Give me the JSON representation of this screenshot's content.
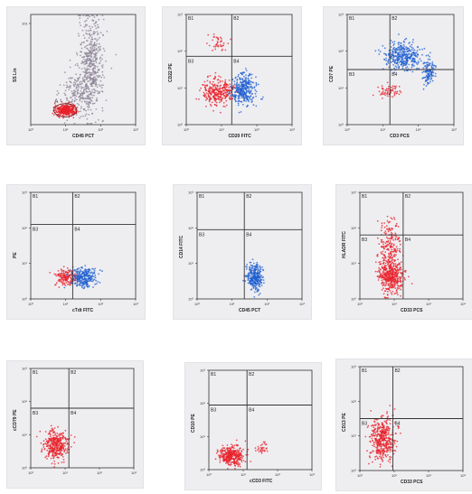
{
  "colors": {
    "red": "#e8202a",
    "blue": "#1f5fd0",
    "gray": "#8e8496",
    "panel": "#eeeef1",
    "line": "#333333"
  },
  "chart_data": [
    {
      "type": "scatter",
      "xlabel": "CD45 PCT",
      "ylabel": "SS Lin",
      "quadrants": false,
      "gate_label": "A",
      "x_ticks": [
        "10⁰",
        "10¹",
        "10²",
        "10³"
      ],
      "y_ticks": [
        "101"
      ],
      "series": [
        {
          "color": "gray",
          "clusters": [
            {
              "x": 0.58,
              "y": 0.55,
              "sx": 0.06,
              "sy": 0.22,
              "n": 480
            },
            {
              "x": 0.45,
              "y": 0.3,
              "sx": 0.08,
              "sy": 0.1,
              "n": 200
            }
          ]
        },
        {
          "color": "red",
          "clusters": [
            {
              "x": 0.33,
              "y": 0.13,
              "sx": 0.05,
              "sy": 0.025,
              "n": 320
            }
          ]
        }
      ]
    },
    {
      "type": "scatter",
      "xlabel": "CD20 FITC",
      "ylabel": "CD22 PE",
      "quadrants": true,
      "qx": 0.43,
      "qy": 0.62,
      "quadrant_labels": [
        "B1",
        "B2",
        "B3",
        "B4"
      ],
      "x_ticks": [
        "10⁰",
        "10¹",
        "10²",
        "10³"
      ],
      "y_ticks": [
        "10³",
        "10²",
        "10¹",
        "10⁰"
      ],
      "series": [
        {
          "color": "red",
          "clusters": [
            {
              "x": 0.3,
              "y": 0.3,
              "sx": 0.07,
              "sy": 0.06,
              "n": 300
            },
            {
              "x": 0.3,
              "y": 0.75,
              "sx": 0.05,
              "sy": 0.04,
              "n": 40
            }
          ]
        },
        {
          "color": "blue",
          "clusters": [
            {
              "x": 0.55,
              "y": 0.32,
              "sx": 0.06,
              "sy": 0.07,
              "n": 320
            }
          ]
        }
      ]
    },
    {
      "type": "scatter",
      "xlabel": "CD3 PCS",
      "ylabel": "CD7 PE",
      "quadrants": true,
      "qx": 0.4,
      "qy": 0.5,
      "quadrant_labels": [
        "B1",
        "B2",
        "B3",
        "B4"
      ],
      "x_ticks": [
        "10⁰",
        "10¹",
        "10²",
        "10³"
      ],
      "y_ticks": [
        "10³",
        "10²",
        "10¹",
        "10⁰"
      ],
      "series": [
        {
          "color": "blue",
          "clusters": [
            {
              "x": 0.52,
              "y": 0.62,
              "sx": 0.08,
              "sy": 0.06,
              "n": 360
            },
            {
              "x": 0.76,
              "y": 0.48,
              "sx": 0.03,
              "sy": 0.06,
              "n": 120
            }
          ]
        },
        {
          "color": "red",
          "clusters": [
            {
              "x": 0.38,
              "y": 0.3,
              "sx": 0.05,
              "sy": 0.03,
              "n": 60
            }
          ]
        }
      ]
    },
    {
      "type": "scatter",
      "xlabel": "cTdt FITC",
      "ylabel": "PE",
      "quadrants": true,
      "qx": 0.4,
      "qy": 0.7,
      "quadrant_labels": [
        "B1",
        "B2",
        "B3",
        "B4"
      ],
      "x_ticks": [
        "10⁰",
        "10¹",
        "10²",
        "10³"
      ],
      "y_ticks": [
        "10³",
        "10²",
        "10¹",
        "10⁰"
      ],
      "series": [
        {
          "color": "red",
          "clusters": [
            {
              "x": 0.33,
              "y": 0.2,
              "sx": 0.05,
              "sy": 0.04,
              "n": 160
            }
          ]
        },
        {
          "color": "blue",
          "clusters": [
            {
              "x": 0.5,
              "y": 0.2,
              "sx": 0.06,
              "sy": 0.05,
              "n": 260
            }
          ]
        }
      ]
    },
    {
      "type": "scatter",
      "xlabel": "CD45 PCT",
      "ylabel": "CD14 FITC",
      "quadrants": true,
      "qx": 0.45,
      "qy": 0.65,
      "quadrant_labels": [
        "B1",
        "B2",
        "B3",
        "B4"
      ],
      "x_ticks": [
        "10⁰",
        "10¹",
        "10²",
        "10³"
      ],
      "y_ticks": [
        "10³",
        "10²",
        "10¹",
        "10⁰"
      ],
      "series": [
        {
          "color": "blue",
          "clusters": [
            {
              "x": 0.55,
              "y": 0.2,
              "sx": 0.035,
              "sy": 0.06,
              "n": 300
            }
          ]
        }
      ]
    },
    {
      "type": "scatter",
      "xlabel": "CD33 PCS",
      "ylabel": "HLADR FITC",
      "quadrants": true,
      "qx": 0.42,
      "qy": 0.6,
      "quadrant_labels": [
        "B1",
        "B2",
        "B3",
        "B4"
      ],
      "x_ticks": [
        "10⁰",
        "10¹",
        "10²",
        "10³"
      ],
      "y_ticks": [
        "10³",
        "10²",
        "10¹",
        "10⁰"
      ],
      "series": [
        {
          "color": "red",
          "clusters": [
            {
              "x": 0.3,
              "y": 0.22,
              "sx": 0.06,
              "sy": 0.08,
              "n": 420
            },
            {
              "x": 0.28,
              "y": 0.5,
              "sx": 0.05,
              "sy": 0.12,
              "n": 200
            }
          ]
        }
      ]
    },
    {
      "type": "scatter",
      "xlabel": "",
      "ylabel": "cCD79 PE",
      "quadrants": true,
      "qx": 0.37,
      "qy": 0.6,
      "quadrant_labels": [
        "B1",
        "B2",
        "B3",
        "B4"
      ],
      "x_ticks": [
        "10⁰",
        "10¹",
        "10²",
        "10³"
      ],
      "y_ticks": [
        "10³",
        "10²",
        "10¹",
        "10⁰"
      ],
      "series": [
        {
          "color": "red",
          "clusters": [
            {
              "x": 0.25,
              "y": 0.23,
              "sx": 0.06,
              "sy": 0.07,
              "n": 360
            }
          ]
        }
      ]
    },
    {
      "type": "scatter",
      "xlabel": "cCD3 FITC",
      "ylabel": "CD10 PE",
      "quadrants": true,
      "qx": 0.37,
      "qy": 0.65,
      "quadrant_labels": [
        "B1",
        "B2",
        "B3",
        "B4"
      ],
      "x_ticks": [
        "10⁰",
        "10¹",
        "10²",
        "10³"
      ],
      "y_ticks": [
        "10³",
        "10²",
        "10¹",
        "10⁰"
      ],
      "series": [
        {
          "color": "red",
          "clusters": [
            {
              "x": 0.22,
              "y": 0.14,
              "sx": 0.06,
              "sy": 0.05,
              "n": 340
            },
            {
              "x": 0.52,
              "y": 0.22,
              "sx": 0.03,
              "sy": 0.03,
              "n": 30
            }
          ]
        }
      ]
    },
    {
      "type": "scatter",
      "xlabel": "CD33 PCS",
      "ylabel": "CD13 PE",
      "quadrants": true,
      "qx": 0.32,
      "qy": 0.5,
      "quadrant_labels": [
        "B1",
        "B2",
        "B3",
        "B4"
      ],
      "x_ticks": [
        "10⁰",
        "10¹",
        "10²",
        "10³"
      ],
      "y_ticks": [
        "10³",
        "10²",
        "10¹",
        "10⁰"
      ],
      "series": [
        {
          "color": "red",
          "clusters": [
            {
              "x": 0.22,
              "y": 0.3,
              "sx": 0.06,
              "sy": 0.1,
              "n": 420
            }
          ]
        }
      ]
    }
  ]
}
